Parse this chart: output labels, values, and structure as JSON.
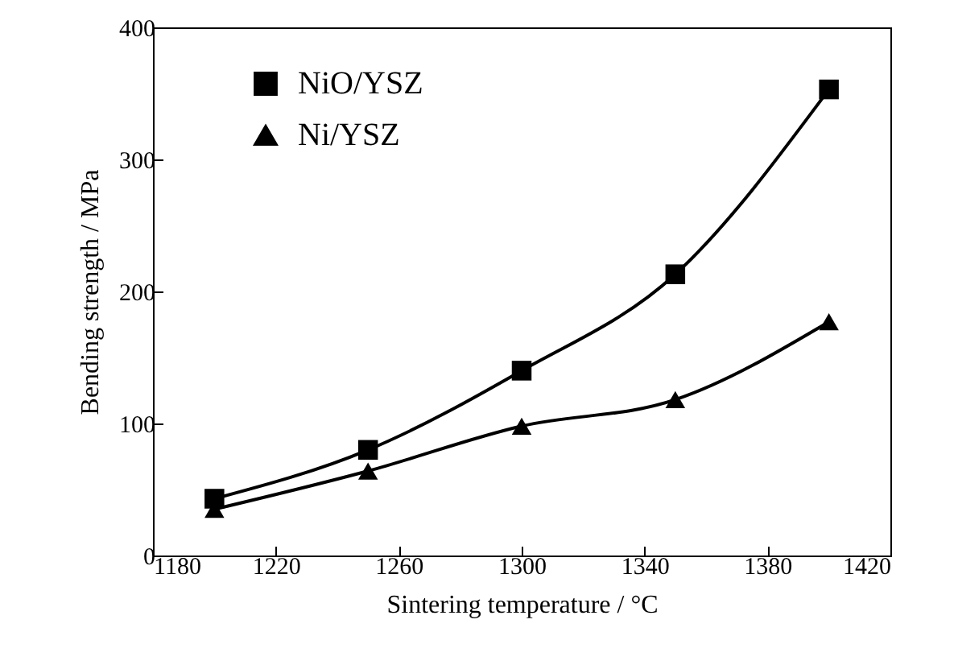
{
  "chart_data": {
    "type": "line",
    "xlabel": "Sintering temperature / °C",
    "ylabel": "Bending strength / MPa",
    "x": [
      1200,
      1250,
      1300,
      1350,
      1400
    ],
    "series": [
      {
        "name": "NiO/YSZ",
        "color": "#000000",
        "marker": "square",
        "values": [
          43,
          80,
          140,
          213,
          353
        ]
      },
      {
        "name": "Ni/YSZ",
        "color": "#000000",
        "marker": "triangle",
        "values": [
          35,
          64,
          98,
          118,
          177
        ]
      }
    ],
    "xlim": [
      1180,
      1420
    ],
    "xticks": [
      1180,
      1220,
      1260,
      1300,
      1340,
      1380,
      1420
    ],
    "ylim": [
      0,
      400
    ],
    "yticks": [
      0,
      100,
      200,
      300,
      400
    ],
    "grid": false,
    "legend": "top left",
    "line_style": "solid"
  }
}
